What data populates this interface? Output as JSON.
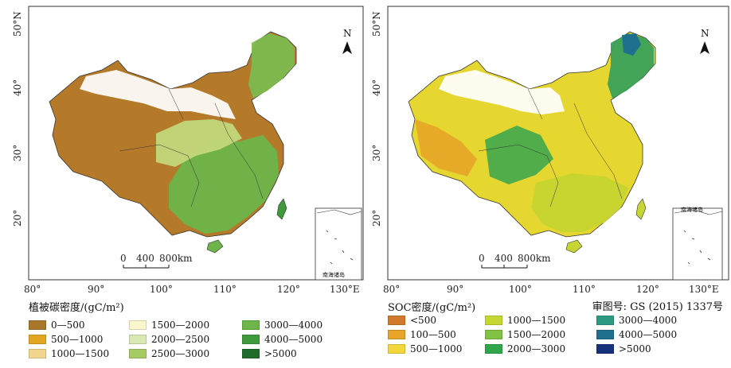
{
  "maps": [
    {
      "id": "vegetation",
      "legend_title": "植被碳密度/(gC/m²)",
      "lat_labels": [
        "50°N",
        "40°",
        "30°",
        "20°"
      ],
      "lon_labels": [
        "80°",
        "90°",
        "100°",
        "110°",
        "120°",
        "130°E"
      ],
      "scale_bar": {
        "ticks": [
          "0",
          "400",
          "800km"
        ]
      },
      "north_label": "N",
      "inset_label": "南海诸岛",
      "palette_dominant": [
        "#b47a2a",
        "#e5d9a6",
        "#6ab04c",
        "#c2d77b",
        "#ffffff"
      ],
      "legend": [
        {
          "label": "0—500",
          "color": "#a8772b"
        },
        {
          "label": "500—1000",
          "color": "#e3a622"
        },
        {
          "label": "1000—1500",
          "color": "#f2d68e"
        },
        {
          "label": "1500—2000",
          "color": "#fbf7cc"
        },
        {
          "label": "2000—2500",
          "color": "#d8e8b5"
        },
        {
          "label": "2500—3000",
          "color": "#a5cc62"
        },
        {
          "label": "3000—4000",
          "color": "#6db44a"
        },
        {
          "label": "4000—5000",
          "color": "#3f9a3c"
        },
        {
          "label": ">5000",
          "color": "#1f6b2b"
        }
      ]
    },
    {
      "id": "soc",
      "legend_title": "SOC密度/(gC/m²)",
      "lat_labels": [
        "50°N",
        "40°",
        "30°",
        "20°"
      ],
      "lon_labels": [
        "80°",
        "90°",
        "100°",
        "110°",
        "120°",
        "130°E"
      ],
      "scale_bar": {
        "ticks": [
          "0",
          "400",
          "800km"
        ]
      },
      "north_label": "N",
      "inset_label": "南海诸岛",
      "palette_dominant": [
        "#e6d730",
        "#c6d531",
        "#8cc440",
        "#2f9a7e",
        "#ffffff"
      ],
      "legend": [
        {
          "label": "<500",
          "color": "#d17a2b"
        },
        {
          "label": "100—500",
          "color": "#e6a528"
        },
        {
          "label": "500—1000",
          "color": "#f1d739"
        },
        {
          "label": "1000—1500",
          "color": "#c5d730"
        },
        {
          "label": "1500—2000",
          "color": "#7fc244"
        },
        {
          "label": "2000—3000",
          "color": "#2fa64a"
        },
        {
          "label": "3000—4000",
          "color": "#2e9a84"
        },
        {
          "label": "4000—5000",
          "color": "#1f6f8f"
        },
        {
          "label": ">5000",
          "color": "#16307a"
        }
      ]
    }
  ],
  "approval_text": "审图号: GS (2015) 1337号"
}
